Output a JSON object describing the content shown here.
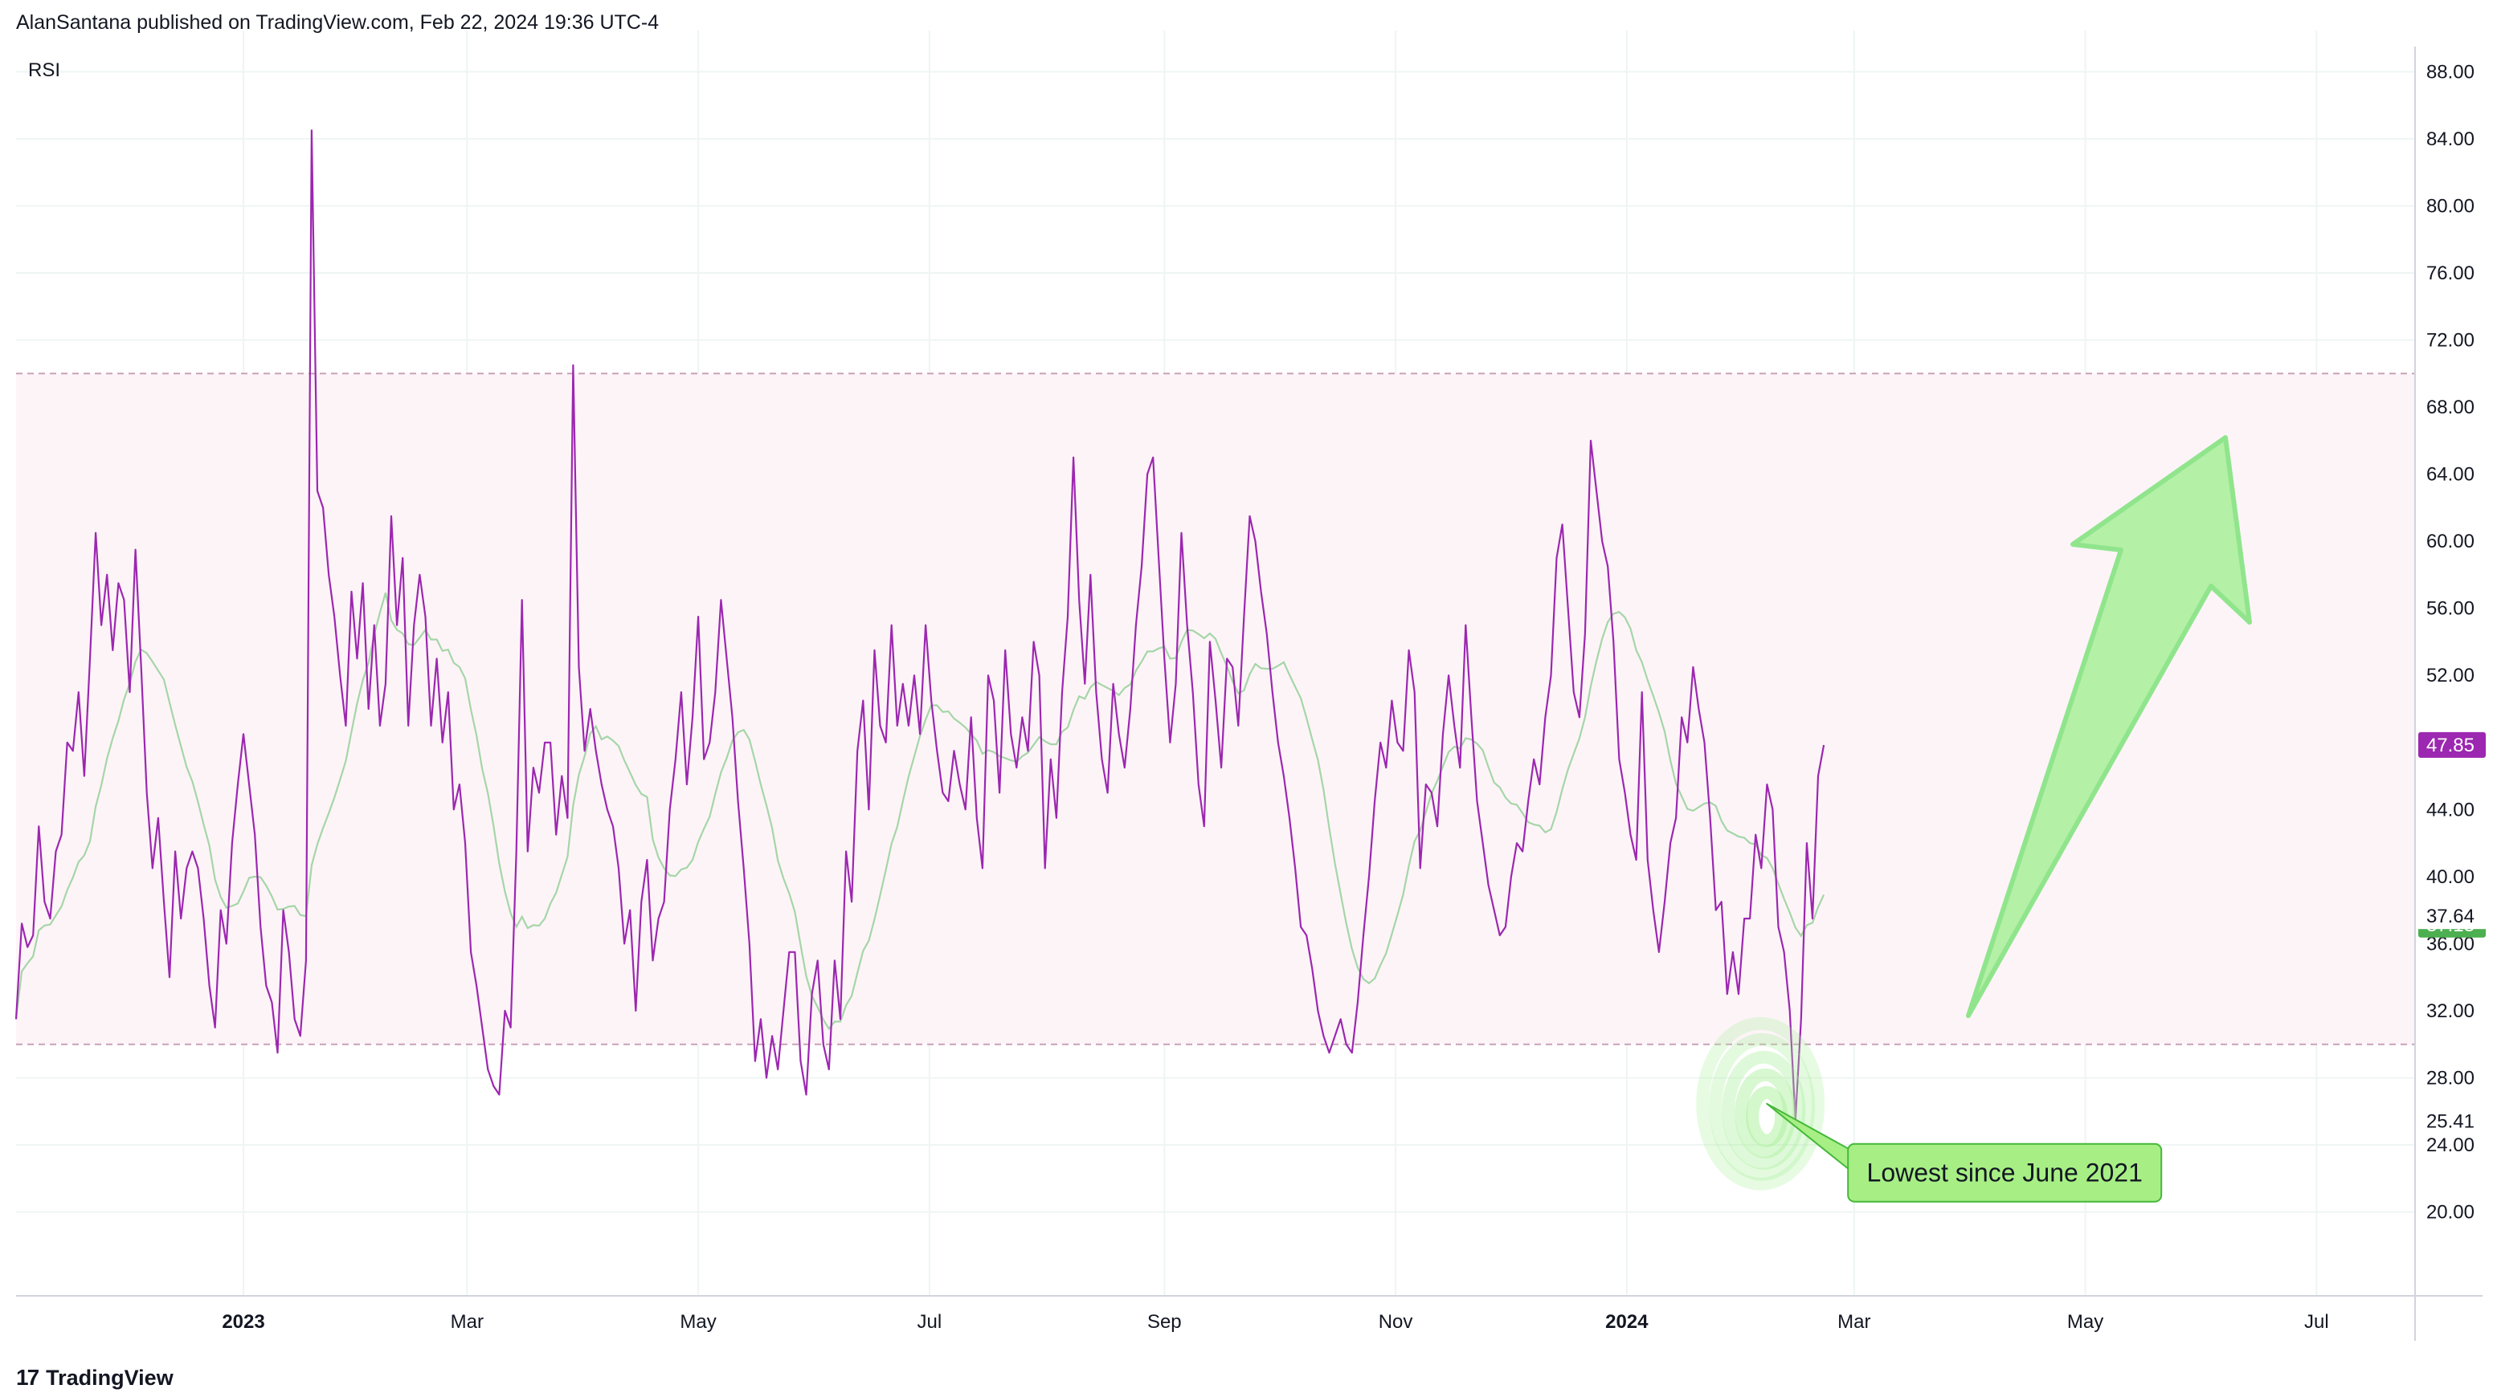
{
  "header": {
    "published": "AlanSantana published on TradingView.com, Feb 22, 2024 19:36 UTC-4"
  },
  "footer": {
    "logo_glyph": "17",
    "brand": "TradingView"
  },
  "colors": {
    "rsi_line": "#9c27b0",
    "rsi_ma": "#a5d6a7",
    "band_fill": "#fdf4f8",
    "band_line": "#c9a1b6",
    "grid": "#eef5f3",
    "arrow_fill": "#a9f09a",
    "arrow_stroke": "#7ee37a",
    "annotation_bg": "#a7ef85",
    "annotation_border": "#45b83a",
    "label_ma": "#4caf50",
    "axis_border": "#d1d4dc"
  },
  "chart_data": {
    "type": "line",
    "title": "RSI",
    "xlabel": "",
    "ylabel": "",
    "ylim": [
      15.0,
      89.5
    ],
    "x_range": [
      "2022-11-02",
      "2024-07-27"
    ],
    "y_ticks": [
      "20.00",
      "24.00",
      "28.00",
      "32.00",
      "36.00",
      "40.00",
      "44.00",
      "48.00",
      "52.00",
      "56.00",
      "60.00",
      "64.00",
      "68.00",
      "72.00",
      "76.00",
      "80.00",
      "84.00",
      "88.00"
    ],
    "x_ticks": [
      {
        "date": "2023-01-01",
        "label": "2023",
        "bold": true
      },
      {
        "date": "2023-03-01",
        "label": "Mar",
        "bold": false
      },
      {
        "date": "2023-05-01",
        "label": "May",
        "bold": false
      },
      {
        "date": "2023-07-01",
        "label": "Jul",
        "bold": false
      },
      {
        "date": "2023-09-01",
        "label": "Sep",
        "bold": false
      },
      {
        "date": "2023-11-01",
        "label": "Nov",
        "bold": false
      },
      {
        "date": "2024-01-01",
        "label": "2024",
        "bold": true
      },
      {
        "date": "2024-03-01",
        "label": "Mar",
        "bold": false
      },
      {
        "date": "2024-05-01",
        "label": "May",
        "bold": false
      },
      {
        "date": "2024-07-01",
        "label": "Jul",
        "bold": false
      }
    ],
    "bands": {
      "upper": 70,
      "lower": 30
    },
    "start_date": "2022-11-02",
    "rsi_values": [
      31.5,
      37.2,
      35.8,
      36.5,
      43.0,
      38.5,
      37.5,
      41.5,
      42.5,
      48.0,
      47.5,
      51.0,
      46.0,
      53.0,
      60.5,
      55.0,
      58.0,
      53.5,
      57.5,
      56.5,
      51.0,
      59.5,
      52.5,
      45.0,
      40.5,
      43.5,
      38.5,
      34.0,
      41.5,
      37.5,
      40.5,
      41.5,
      40.5,
      37.5,
      33.5,
      31.0,
      38.0,
      36.0,
      42.0,
      45.5,
      48.5,
      45.5,
      42.5,
      37.0,
      33.5,
      32.5,
      29.5,
      38.0,
      35.5,
      31.5,
      30.5,
      35.0,
      84.5,
      63.0,
      62.0,
      58.0,
      55.5,
      52.0,
      49.0,
      57.0,
      53.0,
      57.5,
      50.0,
      55.0,
      49.0,
      51.5,
      61.5,
      55.0,
      59.0,
      49.0,
      55.0,
      58.0,
      55.5,
      49.0,
      53.0,
      48.0,
      51.0,
      44.0,
      45.5,
      42.0,
      35.5,
      33.5,
      31.0,
      28.5,
      27.5,
      27.0,
      32.0,
      31.0,
      41.5,
      56.5,
      41.5,
      46.5,
      45.0,
      48.0,
      48.0,
      42.5,
      46.0,
      43.5,
      70.5,
      52.5,
      47.5,
      50.0,
      47.5,
      45.5,
      44.0,
      43.0,
      40.5,
      36.0,
      38.0,
      32.0,
      38.5,
      41.0,
      35.0,
      37.5,
      38.5,
      44.0,
      47.0,
      51.0,
      45.5,
      49.5,
      55.5,
      47.0,
      48.0,
      51.0,
      56.5,
      53.0,
      49.5,
      44.5,
      40.5,
      36.0,
      29.0,
      31.5,
      28.0,
      30.5,
      28.5,
      32.0,
      35.5,
      35.5,
      29.0,
      27.0,
      33.0,
      35.0,
      30.0,
      28.5,
      35.0,
      31.5,
      41.5,
      38.5,
      47.5,
      50.5,
      44.0,
      53.5,
      49.0,
      48.0,
      55.0,
      49.0,
      51.5,
      49.0,
      52.0,
      48.5,
      55.0,
      50.5,
      47.5,
      45.0,
      44.5,
      47.5,
      45.5,
      44.0,
      49.5,
      43.5,
      40.5,
      52.0,
      50.5,
      45.0,
      53.5,
      48.5,
      46.5,
      49.5,
      47.5,
      54.0,
      52.0,
      40.5,
      47.0,
      43.5,
      51.0,
      55.5,
      65.0,
      56.5,
      51.5,
      58.0,
      51.0,
      47.0,
      45.0,
      51.5,
      48.5,
      46.5,
      50.0,
      55.0,
      58.5,
      64.0,
      65.0,
      59.0,
      53.0,
      48.0,
      51.5,
      60.5,
      55.0,
      51.0,
      45.5,
      43.0,
      54.0,
      50.5,
      46.5,
      53.0,
      52.5,
      49.0,
      55.5,
      61.5,
      60.0,
      57.0,
      54.5,
      51.0,
      48.0,
      46.0,
      43.5,
      40.5,
      37.0,
      36.5,
      34.5,
      32.0,
      30.5,
      29.5,
      30.5,
      31.5,
      30.0,
      29.5,
      32.5,
      36.5,
      40.0,
      44.5,
      48.0,
      46.5,
      50.5,
      48.0,
      47.5,
      53.5,
      51.0,
      40.5,
      45.5,
      45.0,
      43.0,
      48.5,
      52.0,
      49.0,
      46.5,
      55.0,
      49.5,
      44.5,
      42.0,
      39.5,
      38.0,
      36.5,
      37.0,
      40.0,
      42.0,
      41.5,
      44.5,
      47.0,
      45.5,
      49.5,
      52.0,
      59.0,
      61.0,
      56.0,
      51.0,
      49.5,
      54.5,
      66.0,
      63.0,
      60.0,
      58.5,
      54.0,
      47.0,
      45.0,
      42.5,
      41.0,
      51.0,
      41.0,
      38.0,
      35.5,
      38.5,
      42.0,
      43.5,
      49.5,
      48.0,
      52.5,
      50.0,
      48.0,
      43.5,
      38.0,
      38.5,
      33.0,
      35.5,
      33.0,
      37.5,
      37.5,
      42.5,
      40.5,
      45.5,
      44.0,
      37.0,
      35.5,
      32.0,
      25.5,
      31.5,
      42.0,
      37.5,
      46.0,
      47.85
    ]
  },
  "price_labels": [
    {
      "value": "47.85",
      "y": 47.85,
      "bg": "#9c27b0",
      "fg": "#ffffff",
      "boxed": true
    },
    {
      "value": "37.13",
      "y": 37.13,
      "bg": "#4caf50",
      "fg": "#ffffff",
      "boxed": true
    },
    {
      "value": "37.64",
      "y": 37.64,
      "bg": "#ffffff",
      "fg": "#131722",
      "boxed": false
    },
    {
      "value": "25.41",
      "y": 25.41,
      "bg": "#ffffff",
      "fg": "#131722",
      "boxed": false
    }
  ],
  "annotation": {
    "text": "Lowest since June 2021",
    "anchor_date": "2024-02-04",
    "anchor_value": 25.5,
    "arrow_direction": "up"
  }
}
